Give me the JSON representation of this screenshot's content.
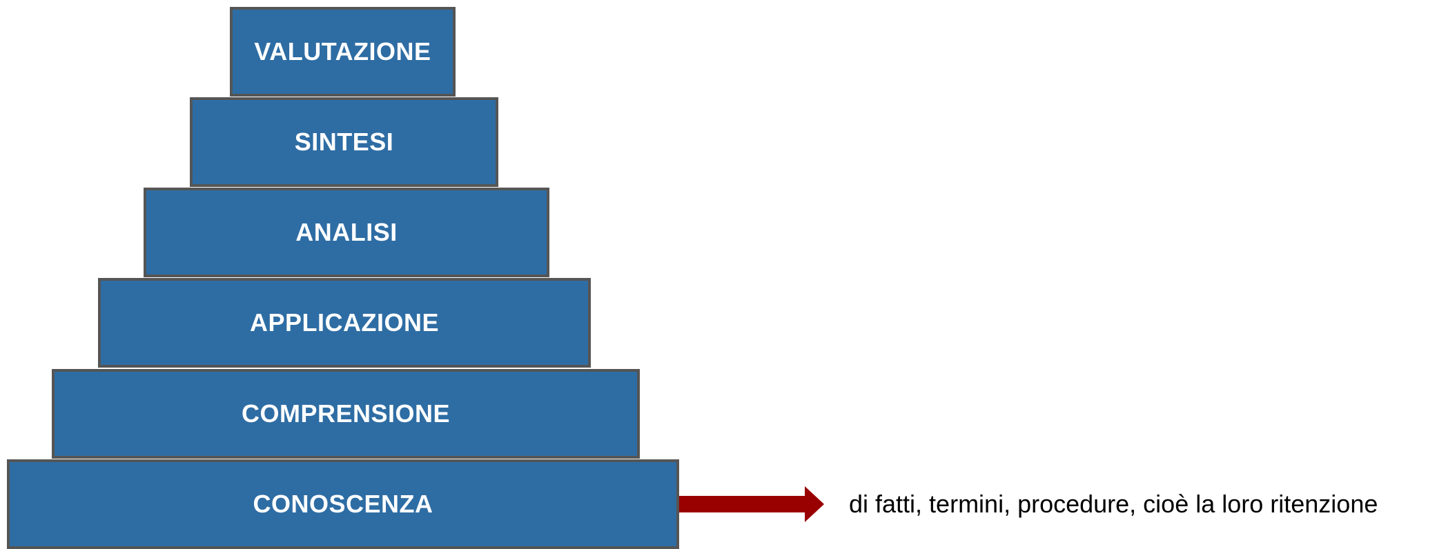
{
  "pyramid": {
    "levels": [
      {
        "label": "VALUTAZIONE"
      },
      {
        "label": "SINTESI"
      },
      {
        "label": "ANALISI"
      },
      {
        "label": "APPLICAZIONE"
      },
      {
        "label": "COMPRENSIONE"
      },
      {
        "label": "CONOSCENZA"
      }
    ],
    "fill_color": "#2e6da4",
    "border_color": "#555555"
  },
  "annotation": {
    "target_level": "CONOSCENZA",
    "text": "di fatti, termini, procedure, cioè la loro ritenzione",
    "arrow_color": "#990000",
    "arrow_icon": "arrow-right-icon"
  }
}
